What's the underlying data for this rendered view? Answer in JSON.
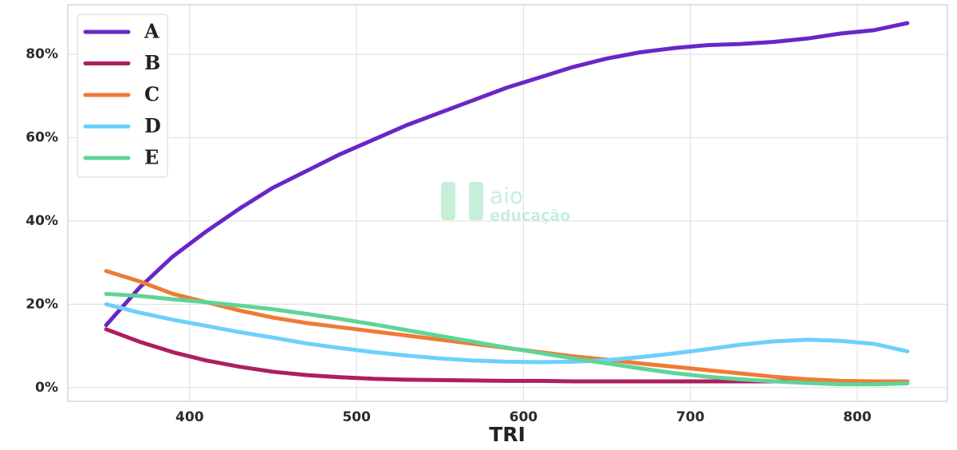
{
  "chart_data": {
    "type": "line",
    "x_label": "TRI",
    "x": [
      350,
      370,
      390,
      410,
      430,
      450,
      470,
      490,
      510,
      530,
      550,
      570,
      590,
      610,
      630,
      650,
      670,
      690,
      710,
      730,
      750,
      770,
      790,
      810,
      830
    ],
    "series": [
      {
        "name": "A",
        "color": "#6a26c8",
        "values": [
          15,
          24,
          31.5,
          37.5,
          43,
          48,
          52,
          56,
          59.5,
          63,
          66,
          69,
          72,
          74.5,
          77,
          79,
          80.5,
          81.5,
          82.2,
          82.5,
          83,
          83.8,
          85,
          85.8,
          87.5
        ]
      },
      {
        "name": "B",
        "color": "#ad1f5f",
        "values": [
          14,
          11,
          8.5,
          6.5,
          5,
          3.8,
          3,
          2.5,
          2.1,
          1.9,
          1.8,
          1.7,
          1.6,
          1.6,
          1.5,
          1.5,
          1.5,
          1.5,
          1.5,
          1.5,
          1.5,
          1.5,
          1.5,
          1.4,
          1.4
        ]
      },
      {
        "name": "C",
        "color": "#ef7b35",
        "values": [
          28,
          25.5,
          22.5,
          20.5,
          18.5,
          16.8,
          15.5,
          14.5,
          13.5,
          12.5,
          11.5,
          10.5,
          9.5,
          8.5,
          7.5,
          6.7,
          5.8,
          5,
          4.2,
          3.4,
          2.6,
          2,
          1.6,
          1.5,
          1.5
        ]
      },
      {
        "name": "D",
        "color": "#6dd0fb",
        "values": [
          20,
          18,
          16.3,
          14.8,
          13.3,
          12,
          10.6,
          9.5,
          8.5,
          7.7,
          7,
          6.5,
          6.2,
          6.1,
          6.2,
          6.6,
          7.3,
          8.2,
          9.2,
          10.3,
          11.1,
          11.5,
          11.2,
          10.5,
          8.7
        ]
      },
      {
        "name": "E",
        "color": "#5fd497",
        "values": [
          22.5,
          22,
          21.2,
          20.5,
          19.7,
          18.8,
          17.7,
          16.5,
          15.2,
          13.8,
          12.4,
          11,
          9.6,
          8.3,
          7,
          5.8,
          4.6,
          3.5,
          2.6,
          2,
          1.5,
          1.1,
          0.8,
          0.8,
          1
        ]
      }
    ],
    "xlim": [
      327,
      854
    ],
    "xticks": [
      400,
      500,
      600,
      700,
      800
    ],
    "ylim": [
      -3.3,
      91.9
    ],
    "yticks": [
      {
        "value": 0,
        "label": "0%"
      },
      {
        "value": 20,
        "label": "20%"
      },
      {
        "value": 40,
        "label": "40%"
      },
      {
        "value": 60,
        "label": "60%"
      },
      {
        "value": 80,
        "label": "80%"
      }
    ],
    "grid": true,
    "legend": "upper-left",
    "watermark": [
      "aio",
      "educação"
    ]
  }
}
